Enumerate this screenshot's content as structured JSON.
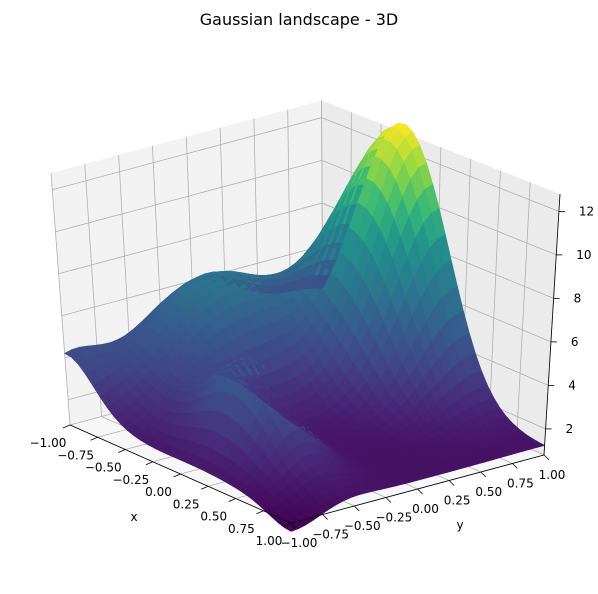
{
  "chart_data": {
    "type": "surface3d",
    "title": "Gaussian landscape - 3D",
    "xlabel": "x",
    "ylabel": "y",
    "zlabel": "",
    "xlim": [
      -1.0,
      1.0
    ],
    "ylim": [
      -1.0,
      1.0
    ],
    "zlim": [
      0.8,
      12.8
    ],
    "x_ticks": [
      "−1.00",
      "−0.75",
      "−0.50",
      "−0.25",
      "0.00",
      "0.25",
      "0.50",
      "0.75",
      "1.00"
    ],
    "y_ticks": [
      "−1.00",
      "−0.75",
      "−0.50",
      "−0.25",
      "0.00",
      "0.25",
      "0.50",
      "0.75",
      "1.00"
    ],
    "z_ticks": [
      "2",
      "4",
      "6",
      "8",
      "10",
      "12"
    ],
    "colormap": "viridis",
    "grid": true,
    "surface_samples": {
      "note": "approximate heights read from the rendered surface",
      "corner_x_-1_y_-1": 3.2,
      "corner_x_1_y_-1": 0.9,
      "corner_x_1_y_1": 1.5,
      "corner_x_-1_y_1": 9.0,
      "peak_near_x_-0.3_y_1": 12.7,
      "local_peak_near_x_0.1_y_-0.5": 6.8
    }
  }
}
